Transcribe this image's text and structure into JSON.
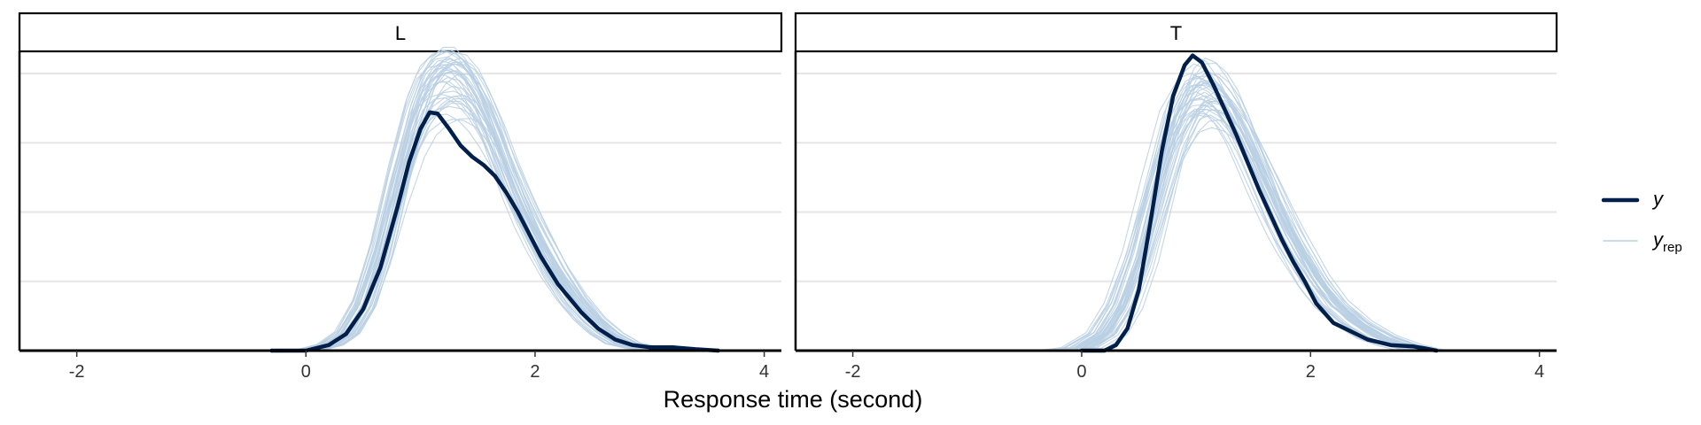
{
  "chart_data": {
    "type": "line",
    "xlabel": "Response time (second)",
    "ylabel": "",
    "xlim": [
      -2.5,
      4.15
    ],
    "ylim": [
      0,
      1.08
    ],
    "x_ticks": [
      -2,
      0,
      2,
      4
    ],
    "x_tick_labels": [
      "-2",
      "0",
      "2",
      "4"
    ],
    "grid": "horizontal",
    "legend_position": "right",
    "legend": [
      {
        "name": "y",
        "sub": "",
        "role": "observed",
        "color": "#011F4B"
      },
      {
        "name": "y",
        "sub": "rep",
        "role": "replicated",
        "color": "#B8CFE3"
      }
    ],
    "panels": [
      {
        "label": "L",
        "observed": {
          "name": "y",
          "x": [
            -0.3,
            0.0,
            0.2,
            0.35,
            0.5,
            0.65,
            0.8,
            0.9,
            1.0,
            1.08,
            1.15,
            1.25,
            1.35,
            1.45,
            1.55,
            1.65,
            1.75,
            1.85,
            1.95,
            2.05,
            2.2,
            2.4,
            2.55,
            2.7,
            2.85,
            3.0,
            3.2,
            3.4,
            3.6
          ],
          "y": [
            0.0,
            0.0,
            0.02,
            0.06,
            0.15,
            0.3,
            0.52,
            0.68,
            0.8,
            0.86,
            0.855,
            0.8,
            0.74,
            0.7,
            0.67,
            0.63,
            0.57,
            0.5,
            0.42,
            0.34,
            0.24,
            0.14,
            0.08,
            0.04,
            0.02,
            0.012,
            0.012,
            0.005,
            0.0
          ]
        },
        "replicated": {
          "name": "y",
          "sub": "rep",
          "count": 40,
          "x": [
            0.0,
            0.2,
            0.35,
            0.5,
            0.65,
            0.8,
            0.95,
            1.05,
            1.15,
            1.25,
            1.35,
            1.45,
            1.55,
            1.65,
            1.75,
            1.85,
            1.95,
            2.05,
            2.2,
            2.35,
            2.5,
            2.65,
            2.8,
            3.0,
            3.2
          ],
          "y": [
            0.0,
            0.02,
            0.06,
            0.16,
            0.34,
            0.58,
            0.8,
            0.9,
            0.95,
            0.97,
            0.96,
            0.92,
            0.85,
            0.76,
            0.65,
            0.55,
            0.46,
            0.38,
            0.27,
            0.18,
            0.11,
            0.06,
            0.025,
            0.008,
            0.0
          ]
        }
      },
      {
        "label": "T",
        "observed": {
          "name": "y",
          "x": [
            0.0,
            0.2,
            0.3,
            0.4,
            0.5,
            0.6,
            0.7,
            0.8,
            0.9,
            0.97,
            1.05,
            1.15,
            1.25,
            1.35,
            1.45,
            1.55,
            1.65,
            1.75,
            1.85,
            1.95,
            2.05,
            2.2,
            2.35,
            2.5,
            2.7,
            2.9,
            3.0,
            3.1
          ],
          "y": [
            0.0,
            0.0,
            0.02,
            0.08,
            0.22,
            0.46,
            0.72,
            0.92,
            1.03,
            1.065,
            1.04,
            0.96,
            0.87,
            0.78,
            0.68,
            0.58,
            0.49,
            0.4,
            0.32,
            0.25,
            0.17,
            0.1,
            0.07,
            0.04,
            0.02,
            0.015,
            0.008,
            0.0
          ]
        },
        "replicated": {
          "name": "y",
          "sub": "rep",
          "count": 40,
          "x": [
            -0.2,
            0.0,
            0.2,
            0.35,
            0.5,
            0.65,
            0.8,
            0.95,
            1.05,
            1.15,
            1.25,
            1.35,
            1.45,
            1.55,
            1.65,
            1.75,
            1.85,
            1.95,
            2.05,
            2.2,
            2.4,
            2.6,
            2.8,
            3.0
          ],
          "y": [
            0.0,
            0.01,
            0.06,
            0.16,
            0.33,
            0.56,
            0.78,
            0.9,
            0.93,
            0.92,
            0.88,
            0.82,
            0.74,
            0.65,
            0.56,
            0.47,
            0.39,
            0.32,
            0.25,
            0.17,
            0.1,
            0.05,
            0.02,
            0.0
          ]
        }
      }
    ]
  }
}
